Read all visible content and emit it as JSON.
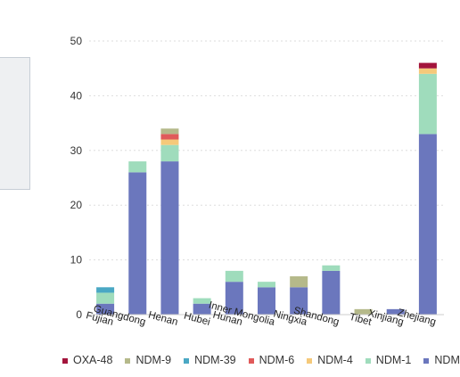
{
  "chart_data": {
    "type": "bar",
    "stacked": true,
    "categories": [
      "Fujian",
      "Guangdong",
      "Henan",
      "Hubei",
      "Hunan",
      "Inner Mongolia",
      "Ningxia",
      "Shandong",
      "Tibet",
      "Xinjiang",
      "Zhejiang"
    ],
    "ylim": [
      0,
      50
    ],
    "yticks": [
      0,
      10,
      20,
      30,
      40,
      50
    ],
    "grid": true,
    "legend_position": "bottom",
    "series": [
      {
        "name": "NDM-",
        "color": "#6b77bd",
        "values": [
          2,
          26,
          28,
          2,
          6,
          5,
          5,
          8,
          0,
          1,
          33
        ]
      },
      {
        "name": "NDM-1",
        "color": "#9fdcbc",
        "values": [
          2,
          2,
          3,
          1,
          2,
          1,
          0,
          1,
          0,
          0,
          11
        ]
      },
      {
        "name": "NDM-4",
        "color": "#f5c97a",
        "values": [
          0,
          0,
          1,
          0,
          0,
          0,
          0,
          0,
          0,
          0,
          1
        ]
      },
      {
        "name": "NDM-6",
        "color": "#e05a5a",
        "values": [
          0,
          0,
          1,
          0,
          0,
          0,
          0,
          0,
          0,
          0,
          0
        ]
      },
      {
        "name": "NDM-39",
        "color": "#4aa8c4",
        "values": [
          1,
          0,
          0,
          0,
          0,
          0,
          0,
          0,
          0,
          0,
          0
        ]
      },
      {
        "name": "NDM-9",
        "color": "#b5b98a",
        "values": [
          0,
          0,
          1,
          0,
          0,
          0,
          2,
          0,
          1,
          0,
          0
        ]
      },
      {
        "name": "OXA-48",
        "color": "#a3143c",
        "values": [
          0,
          0,
          0,
          0,
          0,
          0,
          0,
          0,
          0,
          0,
          1
        ]
      }
    ],
    "legend_order": [
      "OXA-48",
      "NDM-9",
      "NDM-39",
      "NDM-6",
      "NDM-4",
      "NDM-1",
      "NDM-"
    ]
  }
}
